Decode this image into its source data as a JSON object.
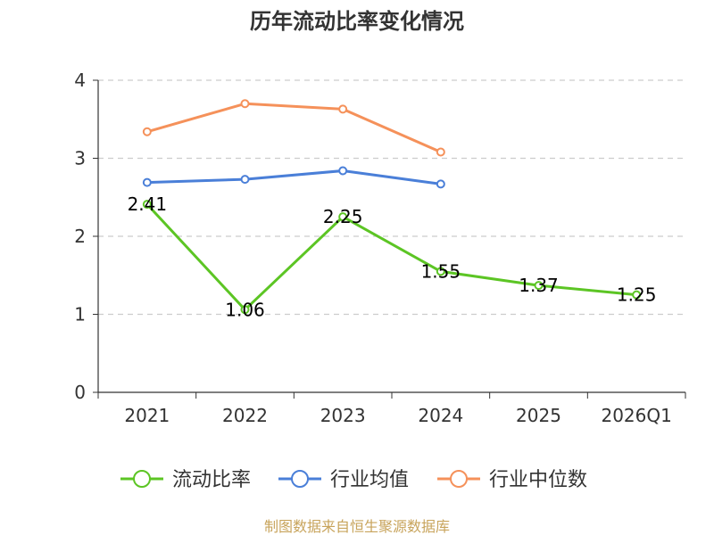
{
  "chart_data": {
    "type": "line",
    "title": "历年流动比率变化情况",
    "categories": [
      "2021",
      "2022",
      "2023",
      "2024",
      "2025",
      "2026Q1"
    ],
    "ylim": [
      0,
      4
    ],
    "yticks": [
      0,
      1,
      2,
      3,
      4
    ],
    "grid": true,
    "legend_position": "bottom",
    "series": [
      {
        "name": "流动比率",
        "color": "#5cc524",
        "values": [
          2.41,
          1.06,
          2.25,
          1.55,
          1.37,
          1.25
        ],
        "labels": [
          "2.41",
          "1.06",
          "2.25",
          "1.55",
          "1.37",
          "1.25"
        ]
      },
      {
        "name": "行业均值",
        "color": "#4a7fd8",
        "values": [
          2.69,
          2.73,
          2.84,
          2.67,
          null,
          null
        ]
      },
      {
        "name": "行业中位数",
        "color": "#f5915a",
        "values": [
          3.34,
          3.7,
          3.63,
          3.08,
          null,
          null
        ]
      }
    ],
    "source": "制图数据来自恒生聚源数据库"
  }
}
